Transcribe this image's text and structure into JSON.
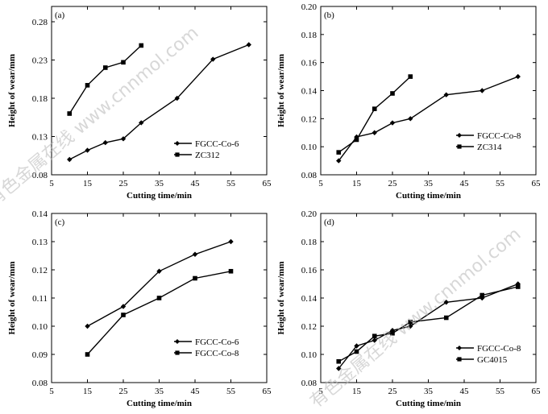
{
  "chart_data": [
    {
      "type": "line",
      "panel_label": "(a)",
      "xlabel": "Cutting time/min",
      "ylabel": "Height of wear/mm",
      "xlim": [
        5,
        65
      ],
      "ylim": [
        0.08,
        0.3
      ],
      "xticks": [
        5,
        15,
        25,
        35,
        45,
        55,
        65
      ],
      "yticks": [
        0.08,
        0.13,
        0.18,
        0.23,
        0.28
      ],
      "ytick_labels": [
        "0.08",
        "0.13",
        "0.18",
        "0.23",
        "0.28"
      ],
      "legend_position": "lower-right",
      "series": [
        {
          "name": "FGCC-Co-6",
          "marker": "diamond",
          "x": [
            10,
            15,
            20,
            25,
            30,
            40,
            50,
            60
          ],
          "y": [
            0.1,
            0.112,
            0.122,
            0.127,
            0.148,
            0.18,
            0.231,
            0.25
          ]
        },
        {
          "name": "ZC312",
          "marker": "square",
          "x": [
            10,
            15,
            20,
            25,
            30
          ],
          "y": [
            0.16,
            0.197,
            0.22,
            0.227,
            0.249
          ]
        }
      ]
    },
    {
      "type": "line",
      "panel_label": "(b)",
      "xlabel": "Cutting time/min",
      "ylabel": "Height of wear/mm",
      "xlim": [
        5,
        65
      ],
      "ylim": [
        0.08,
        0.2
      ],
      "xticks": [
        5,
        15,
        25,
        35,
        45,
        55,
        65
      ],
      "yticks": [
        0.08,
        0.1,
        0.12,
        0.14,
        0.16,
        0.18,
        0.2
      ],
      "ytick_labels": [
        "0.08",
        "0.10",
        "0.12",
        "0.14",
        "0.16",
        "0.18",
        "0.20"
      ],
      "legend_position": "lower-right",
      "series": [
        {
          "name": "FGCC-Co-8",
          "marker": "diamond",
          "x": [
            10,
            15,
            20,
            25,
            30,
            40,
            50,
            60
          ],
          "y": [
            0.09,
            0.107,
            0.11,
            0.117,
            0.12,
            0.137,
            0.14,
            0.15
          ]
        },
        {
          "name": "ZC314",
          "marker": "square",
          "x": [
            10,
            15,
            20,
            25,
            30
          ],
          "y": [
            0.096,
            0.105,
            0.127,
            0.138,
            0.15
          ]
        }
      ]
    },
    {
      "type": "line",
      "panel_label": "(c)",
      "xlabel": "Cutting time/min",
      "ylabel": "Height of wear/mm",
      "xlim": [
        5,
        65
      ],
      "ylim": [
        0.08,
        0.14
      ],
      "xticks": [
        5,
        15,
        25,
        35,
        45,
        55,
        65
      ],
      "yticks": [
        0.08,
        0.09,
        0.1,
        0.11,
        0.12,
        0.13,
        0.14
      ],
      "ytick_labels": [
        "0.08",
        "0.09",
        "0.10",
        "0.11",
        "0.12",
        "0.13",
        "0.14"
      ],
      "legend_position": "lower-right",
      "series": [
        {
          "name": "FGCC-Co-6",
          "marker": "diamond",
          "x": [
            15,
            25,
            35,
            45,
            55
          ],
          "y": [
            0.1,
            0.107,
            0.1195,
            0.1255,
            0.13
          ]
        },
        {
          "name": "FGCC-Co-8",
          "marker": "square",
          "x": [
            15,
            25,
            35,
            45,
            55
          ],
          "y": [
            0.09,
            0.104,
            0.11,
            0.117,
            0.1195
          ]
        }
      ]
    },
    {
      "type": "line",
      "panel_label": "(d)",
      "xlabel": "Cutting time/min",
      "ylabel": "Height of wear/mm",
      "xlim": [
        5,
        65
      ],
      "ylim": [
        0.08,
        0.2
      ],
      "xticks": [
        5,
        15,
        25,
        35,
        45,
        55,
        65
      ],
      "yticks": [
        0.08,
        0.1,
        0.12,
        0.14,
        0.16,
        0.18,
        0.2
      ],
      "ytick_labels": [
        "0.08",
        "0.10",
        "0.12",
        "0.14",
        "0.16",
        "0.18",
        "0.20"
      ],
      "legend_position": "lower-right",
      "series": [
        {
          "name": "FGCC-Co-8",
          "marker": "diamond",
          "x": [
            10,
            15,
            20,
            25,
            30,
            40,
            50,
            60
          ],
          "y": [
            0.09,
            0.106,
            0.11,
            0.117,
            0.12,
            0.137,
            0.14,
            0.15
          ]
        },
        {
          "name": "GC4015",
          "marker": "square",
          "x": [
            10,
            15,
            20,
            25,
            30,
            40,
            50,
            60
          ],
          "y": [
            0.095,
            0.102,
            0.113,
            0.115,
            0.123,
            0.126,
            0.142,
            0.148
          ]
        }
      ]
    }
  ],
  "watermark": {
    "text": "有色金属在线 www.cnnmol.com"
  }
}
